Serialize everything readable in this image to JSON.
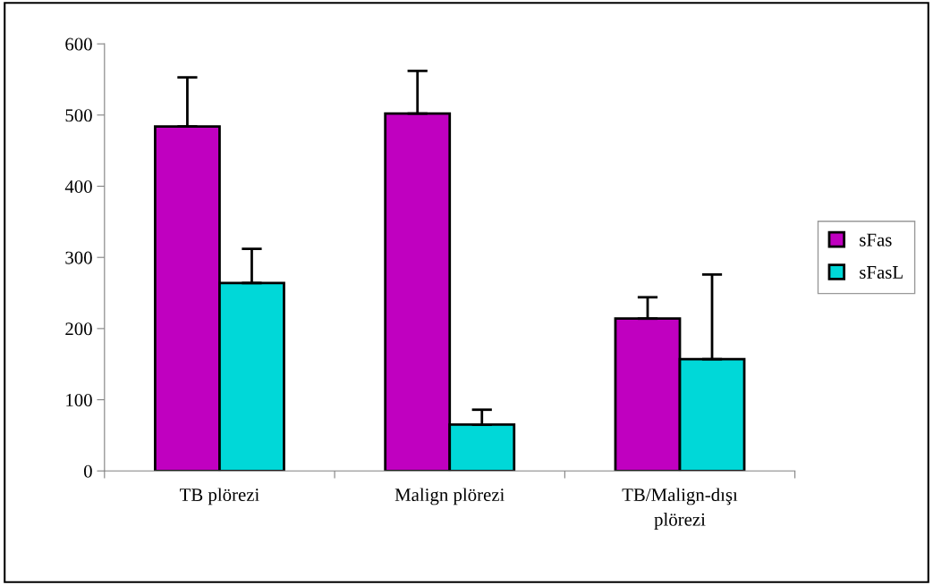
{
  "chart_data": {
    "type": "bar",
    "categories": [
      "TB plörezi",
      "Malign plörezi",
      "TB/Malign-dışı\nplörezi"
    ],
    "series": [
      {
        "name": "sFas",
        "color": "#c000c0",
        "values": [
          484,
          502,
          214
        ],
        "errors": [
          69,
          60,
          30
        ]
      },
      {
        "name": "sFasL",
        "color": "#00d8d8",
        "values": [
          264,
          65,
          157
        ],
        "errors": [
          48,
          21,
          119
        ]
      }
    ],
    "ylim": [
      0,
      600
    ],
    "yticks": [
      0,
      100,
      200,
      300,
      400,
      500,
      600
    ],
    "grid": false,
    "legend": "right"
  }
}
